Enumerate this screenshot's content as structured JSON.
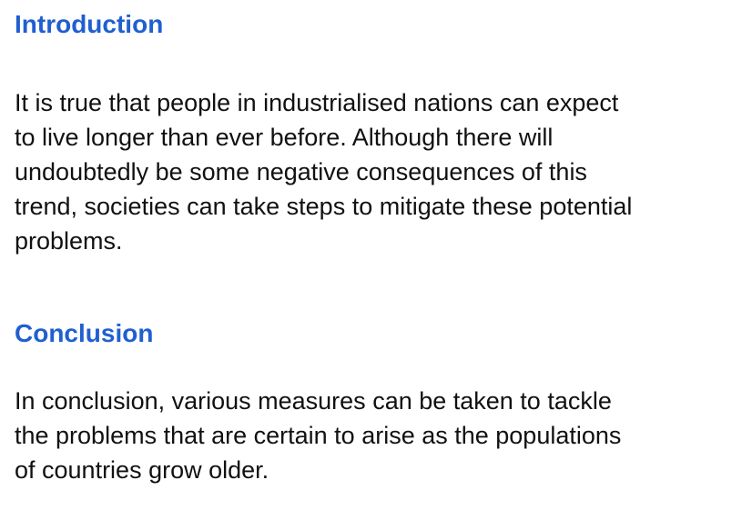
{
  "sections": {
    "introduction": {
      "heading": "Introduction",
      "lines": [
        "It is true that people in industrialised nations can expect",
        "to live longer than ever before. Although there will",
        "undoubtedly be some negative consequences of this",
        "trend, societies can take steps to mitigate these potential",
        "problems."
      ]
    },
    "conclusion": {
      "heading": "Conclusion",
      "lines": [
        "In conclusion, various measures can be taken to tackle",
        "the problems that are certain to arise as the populations",
        "of countries grow older."
      ]
    }
  },
  "colors": {
    "heading": "#1f5fd1",
    "body_text": "#111111",
    "background": "#ffffff"
  }
}
